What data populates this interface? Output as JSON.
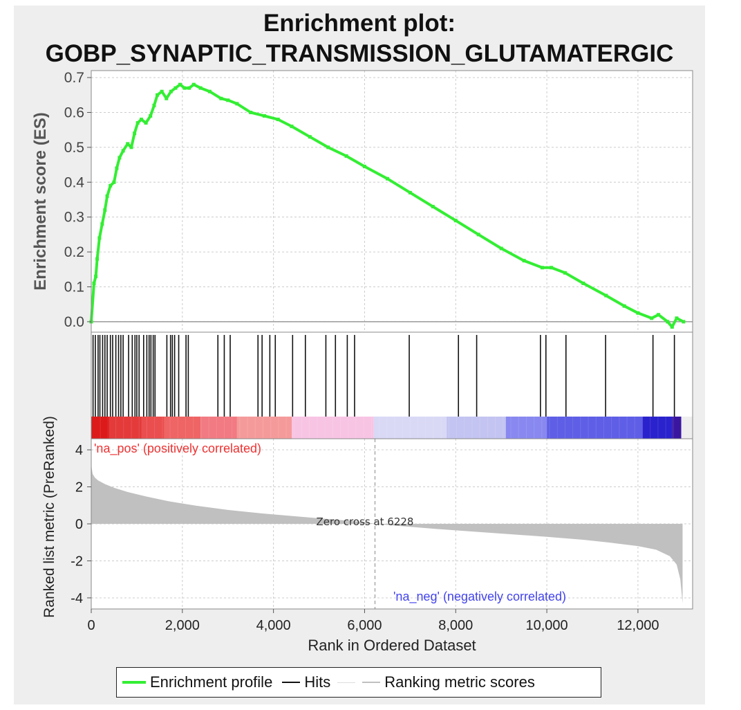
{
  "title_line1": "Enrichment plot:",
  "title_line2": "GOBP_SYNAPTIC_TRANSMISSION_GLUTAMATERGIC",
  "legend": {
    "enrichment_profile": "Enrichment profile",
    "hits": "Hits",
    "ranking_metric": "Ranking metric scores"
  },
  "colors": {
    "es_line": "#33ee33",
    "hits": "#111111",
    "metric_fill": "#c0c0c0",
    "pos_label": "#ee3333",
    "neg_label": "#4444ee"
  },
  "chart_data": [
    {
      "type": "line",
      "ylabel": "Enrichment score (ES)",
      "ylim": [
        -0.03,
        0.72
      ],
      "yticks": [
        "0.7",
        "0.6",
        "0.5",
        "0.4",
        "0.3",
        "0.2",
        "0.1",
        "0.0"
      ],
      "ytick_values": [
        0.7,
        0.6,
        0.5,
        0.4,
        0.3,
        0.2,
        0.1,
        0.0
      ],
      "grid": true,
      "series": [
        {
          "name": "Enrichment profile",
          "x": [
            0,
            60,
            100,
            130,
            180,
            240,
            300,
            350,
            420,
            500,
            560,
            620,
            700,
            800,
            880,
            950,
            1020,
            1100,
            1200,
            1300,
            1380,
            1450,
            1550,
            1650,
            1750,
            1850,
            1950,
            2050,
            2150,
            2250,
            2400,
            2600,
            2850,
            3000,
            3200,
            3500,
            3800,
            4100,
            4400,
            4800,
            5200,
            5600,
            6000,
            6500,
            7000,
            7500,
            8000,
            8500,
            9000,
            9500,
            9900,
            10100,
            10400,
            10800,
            11300,
            11700,
            12000,
            12300,
            12450,
            12650,
            12750,
            12850,
            13000
          ],
          "y": [
            0.0,
            0.11,
            0.13,
            0.18,
            0.24,
            0.28,
            0.32,
            0.36,
            0.39,
            0.4,
            0.44,
            0.47,
            0.49,
            0.51,
            0.5,
            0.54,
            0.57,
            0.58,
            0.57,
            0.59,
            0.62,
            0.65,
            0.66,
            0.64,
            0.66,
            0.67,
            0.68,
            0.67,
            0.67,
            0.68,
            0.67,
            0.66,
            0.64,
            0.635,
            0.625,
            0.6,
            0.59,
            0.58,
            0.56,
            0.53,
            0.5,
            0.475,
            0.445,
            0.41,
            0.37,
            0.33,
            0.29,
            0.25,
            0.21,
            0.175,
            0.155,
            0.155,
            0.14,
            0.11,
            0.075,
            0.045,
            0.025,
            0.01,
            0.02,
            0.0,
            -0.015,
            0.01,
            0.0
          ]
        }
      ],
      "xlim": [
        0,
        13200
      ]
    },
    {
      "type": "hits",
      "name": "Hits",
      "positions": [
        40,
        90,
        150,
        190,
        250,
        300,
        350,
        420,
        470,
        540,
        600,
        650,
        700,
        820,
        900,
        960,
        1000,
        1050,
        1150,
        1220,
        1270,
        1310,
        1360,
        1400,
        1660,
        1740,
        1780,
        1830,
        1920,
        2080,
        2130,
        2780,
        2920,
        3050,
        3660,
        3750,
        3920,
        4040,
        4420,
        4700,
        5150,
        5360,
        5620,
        5780,
        6980,
        8060,
        8460,
        9860,
        9980,
        10420,
        11290,
        12330,
        12800
      ]
    },
    {
      "type": "area",
      "ylabel": "Ranked list metric (PreRanked)",
      "xlabel": "Rank in Ordered Dataset",
      "xlim": [
        0,
        13200
      ],
      "xticks": [
        "0",
        "2,000",
        "4,000",
        "6,000",
        "8,000",
        "10,000",
        "12,000"
      ],
      "xtick_values": [
        0,
        2000,
        4000,
        6000,
        8000,
        10000,
        12000
      ],
      "ylim": [
        -4.6,
        4.6
      ],
      "yticks": [
        "4",
        "2",
        "0",
        "-2",
        "-4"
      ],
      "ytick_values": [
        4,
        2,
        0,
        -2,
        -4
      ],
      "grid": true,
      "series": [
        {
          "name": "Ranking metric scores",
          "x": [
            0,
            10,
            30,
            80,
            150,
            300,
            500,
            800,
            1200,
            1700,
            2300,
            3000,
            3800,
            4600,
            5400,
            6000,
            6228,
            6800,
            7600,
            8400,
            9200,
            10000,
            10800,
            11400,
            12000,
            12400,
            12700,
            12850,
            12930,
            12980
          ],
          "y": [
            3.4,
            3.0,
            2.7,
            2.5,
            2.35,
            2.15,
            1.95,
            1.72,
            1.48,
            1.22,
            0.98,
            0.75,
            0.55,
            0.38,
            0.22,
            0.1,
            0.0,
            -0.12,
            -0.28,
            -0.42,
            -0.56,
            -0.7,
            -0.86,
            -1.02,
            -1.2,
            -1.4,
            -1.75,
            -2.2,
            -3.0,
            -4.3
          ]
        }
      ],
      "annotations": [
        "Zero cross at 6228",
        "'na_pos' (positively correlated)",
        "'na_neg' (negatively correlated)"
      ],
      "zero_cross": 6228
    }
  ],
  "heatbar": {
    "segments": [
      {
        "end": 400,
        "color": "#dd1a1a"
      },
      {
        "end": 1100,
        "color": "#e43a3a"
      },
      {
        "end": 1600,
        "color": "#ea4e4e"
      },
      {
        "end": 2400,
        "color": "#ef6464"
      },
      {
        "end": 3200,
        "color": "#f27a82"
      },
      {
        "end": 4400,
        "color": "#f59a9a"
      },
      {
        "end": 6200,
        "color": "#f8c4e4"
      },
      {
        "end": 7800,
        "color": "#d9d9f6"
      },
      {
        "end": 9100,
        "color": "#c4c4f2"
      },
      {
        "end": 10000,
        "color": "#8888f0"
      },
      {
        "end": 12100,
        "color": "#5e5ee6"
      },
      {
        "end": 12750,
        "color": "#2a22cc"
      },
      {
        "end": 12950,
        "color": "#3a16a0"
      }
    ]
  }
}
